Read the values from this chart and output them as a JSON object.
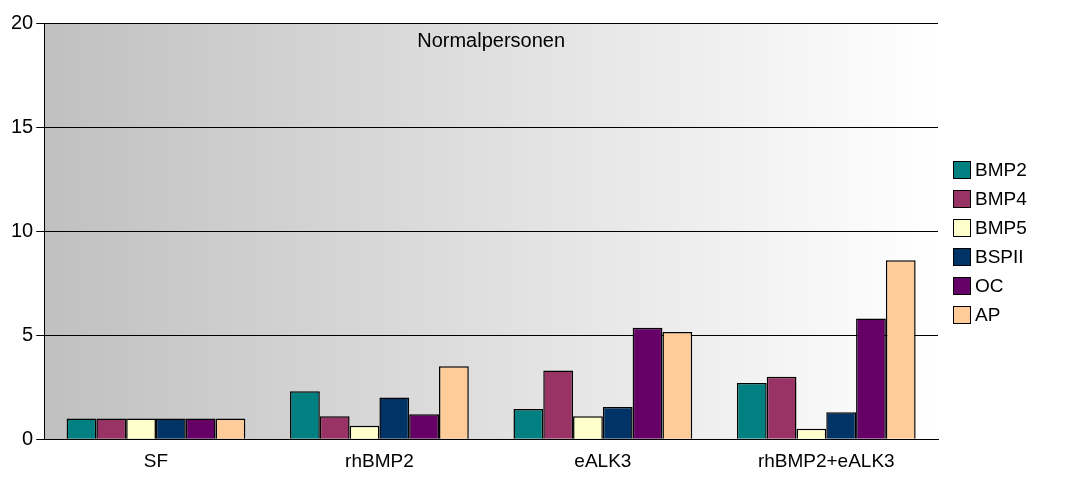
{
  "chart_data": {
    "type": "bar",
    "title": "Normalpersonen",
    "categories": [
      "SF",
      "rhBMP2",
      "eALK3",
      "rhBMP2+eALK3"
    ],
    "series": [
      {
        "name": "BMP2",
        "color": "#008080",
        "values": [
          1,
          2.3,
          1.45,
          2.7
        ]
      },
      {
        "name": "BMP4",
        "color": "#993366",
        "values": [
          1,
          1.1,
          3.3,
          3.0
        ]
      },
      {
        "name": "BMP5",
        "color": "#ffffcc",
        "values": [
          1,
          0.65,
          1.1,
          0.5
        ]
      },
      {
        "name": "BSPII",
        "color": "#003366",
        "values": [
          1,
          2.0,
          1.55,
          1.3
        ]
      },
      {
        "name": "OC",
        "color": "#660066",
        "values": [
          1,
          1.2,
          5.35,
          5.8
        ]
      },
      {
        "name": "AP",
        "color": "#ffcc99",
        "values": [
          1,
          3.5,
          5.15,
          8.6
        ]
      }
    ],
    "ylim": [
      0,
      20
    ],
    "yticks": [
      0,
      5,
      10,
      15,
      20
    ],
    "grid": "y",
    "legend": "right"
  }
}
